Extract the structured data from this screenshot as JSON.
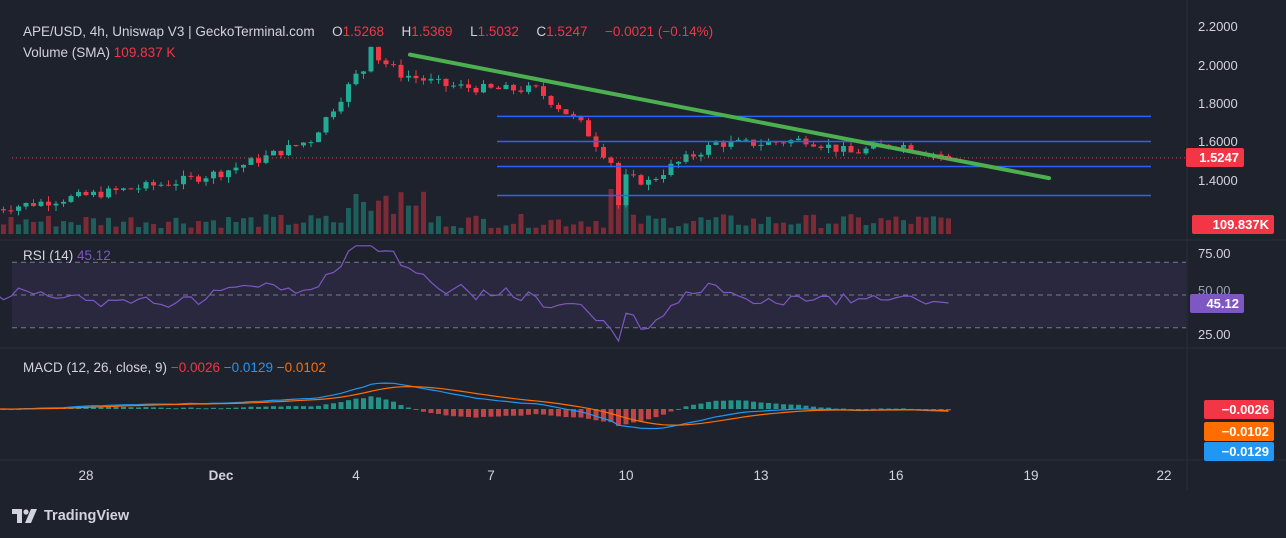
{
  "header": {
    "symbol": "APE/USD, 4h, Uniswap V3 | GeckoTerminal.com",
    "o_label": "O",
    "o_value": "1.5268",
    "h_label": "H",
    "h_value": "1.5369",
    "l_label": "L",
    "l_value": "1.5032",
    "c_label": "C",
    "c_value": "1.5247",
    "change": "−0.0021 (−0.14%)",
    "volume_label": "Volume (SMA)",
    "volume_value": "109.837 K"
  },
  "price_axis": {
    "ticks": [
      "2.2000",
      "2.0000",
      "1.8000",
      "1.6000",
      "1.4000"
    ],
    "last_price_badge": "1.5247",
    "volume_badge": "109.837K"
  },
  "rsi": {
    "label": "RSI (14)",
    "value": "45.12",
    "ticks": [
      "75.00",
      "50.00",
      "25.00"
    ],
    "badge": "45.12"
  },
  "macd": {
    "label": "MACD (12, 26, close, 9)",
    "hist_value": "−0.0026",
    "macd_value": "−0.0129",
    "signal_value": "−0.0102",
    "badges": [
      "−0.0026",
      "−0.0102",
      "−0.0129"
    ]
  },
  "time_axis": {
    "labels": [
      "28",
      "Dec",
      "4",
      "7",
      "10",
      "13",
      "16",
      "19",
      "22"
    ]
  },
  "branding": {
    "name": "TradingView"
  },
  "colors": {
    "background": "#1e222d",
    "up": "#22ab94",
    "down": "#f23645",
    "trendline": "#4caf50",
    "levels": "#2962ff",
    "rsi": "#7e57c2",
    "macd": "#2196f3",
    "signal": "#ff6d00"
  },
  "chart_data": {
    "type": "line",
    "price_ylim": [
      1.2,
      2.2
    ],
    "trendline": {
      "x": [
        "Dec 5",
        "Dec 19"
      ],
      "y": [
        2.06,
        1.42
      ]
    },
    "levels": [
      1.74,
      1.61,
      1.48,
      1.33
    ],
    "close_approx": {
      "x": [
        "Nov 26",
        "Nov 28",
        "Nov 30",
        "Dec 1",
        "Dec 2",
        "Dec 3",
        "Dec 4",
        "Dec 4.5",
        "Dec 5",
        "Dec 6",
        "Dec 7",
        "Dec 8",
        "Dec 9",
        "Dec 9.5",
        "Dec 10",
        "Dec 10.5",
        "Dec 11",
        "Dec 12",
        "Dec 13",
        "Dec 14",
        "Dec 15",
        "Dec 16",
        "Dec 17"
      ],
      "y": [
        1.26,
        1.33,
        1.4,
        1.45,
        1.53,
        1.62,
        1.95,
        2.04,
        1.96,
        1.9,
        1.88,
        1.88,
        1.7,
        1.55,
        1.42,
        1.4,
        1.48,
        1.6,
        1.6,
        1.62,
        1.55,
        1.6,
        1.5247
      ]
    },
    "rsi_ylim": [
      20,
      80
    ],
    "rsi_levels": [
      70,
      50,
      30
    ],
    "rsi_last": 45.12,
    "macd_last": {
      "histogram": -0.0026,
      "macd": -0.0129,
      "signal": -0.0102
    }
  }
}
